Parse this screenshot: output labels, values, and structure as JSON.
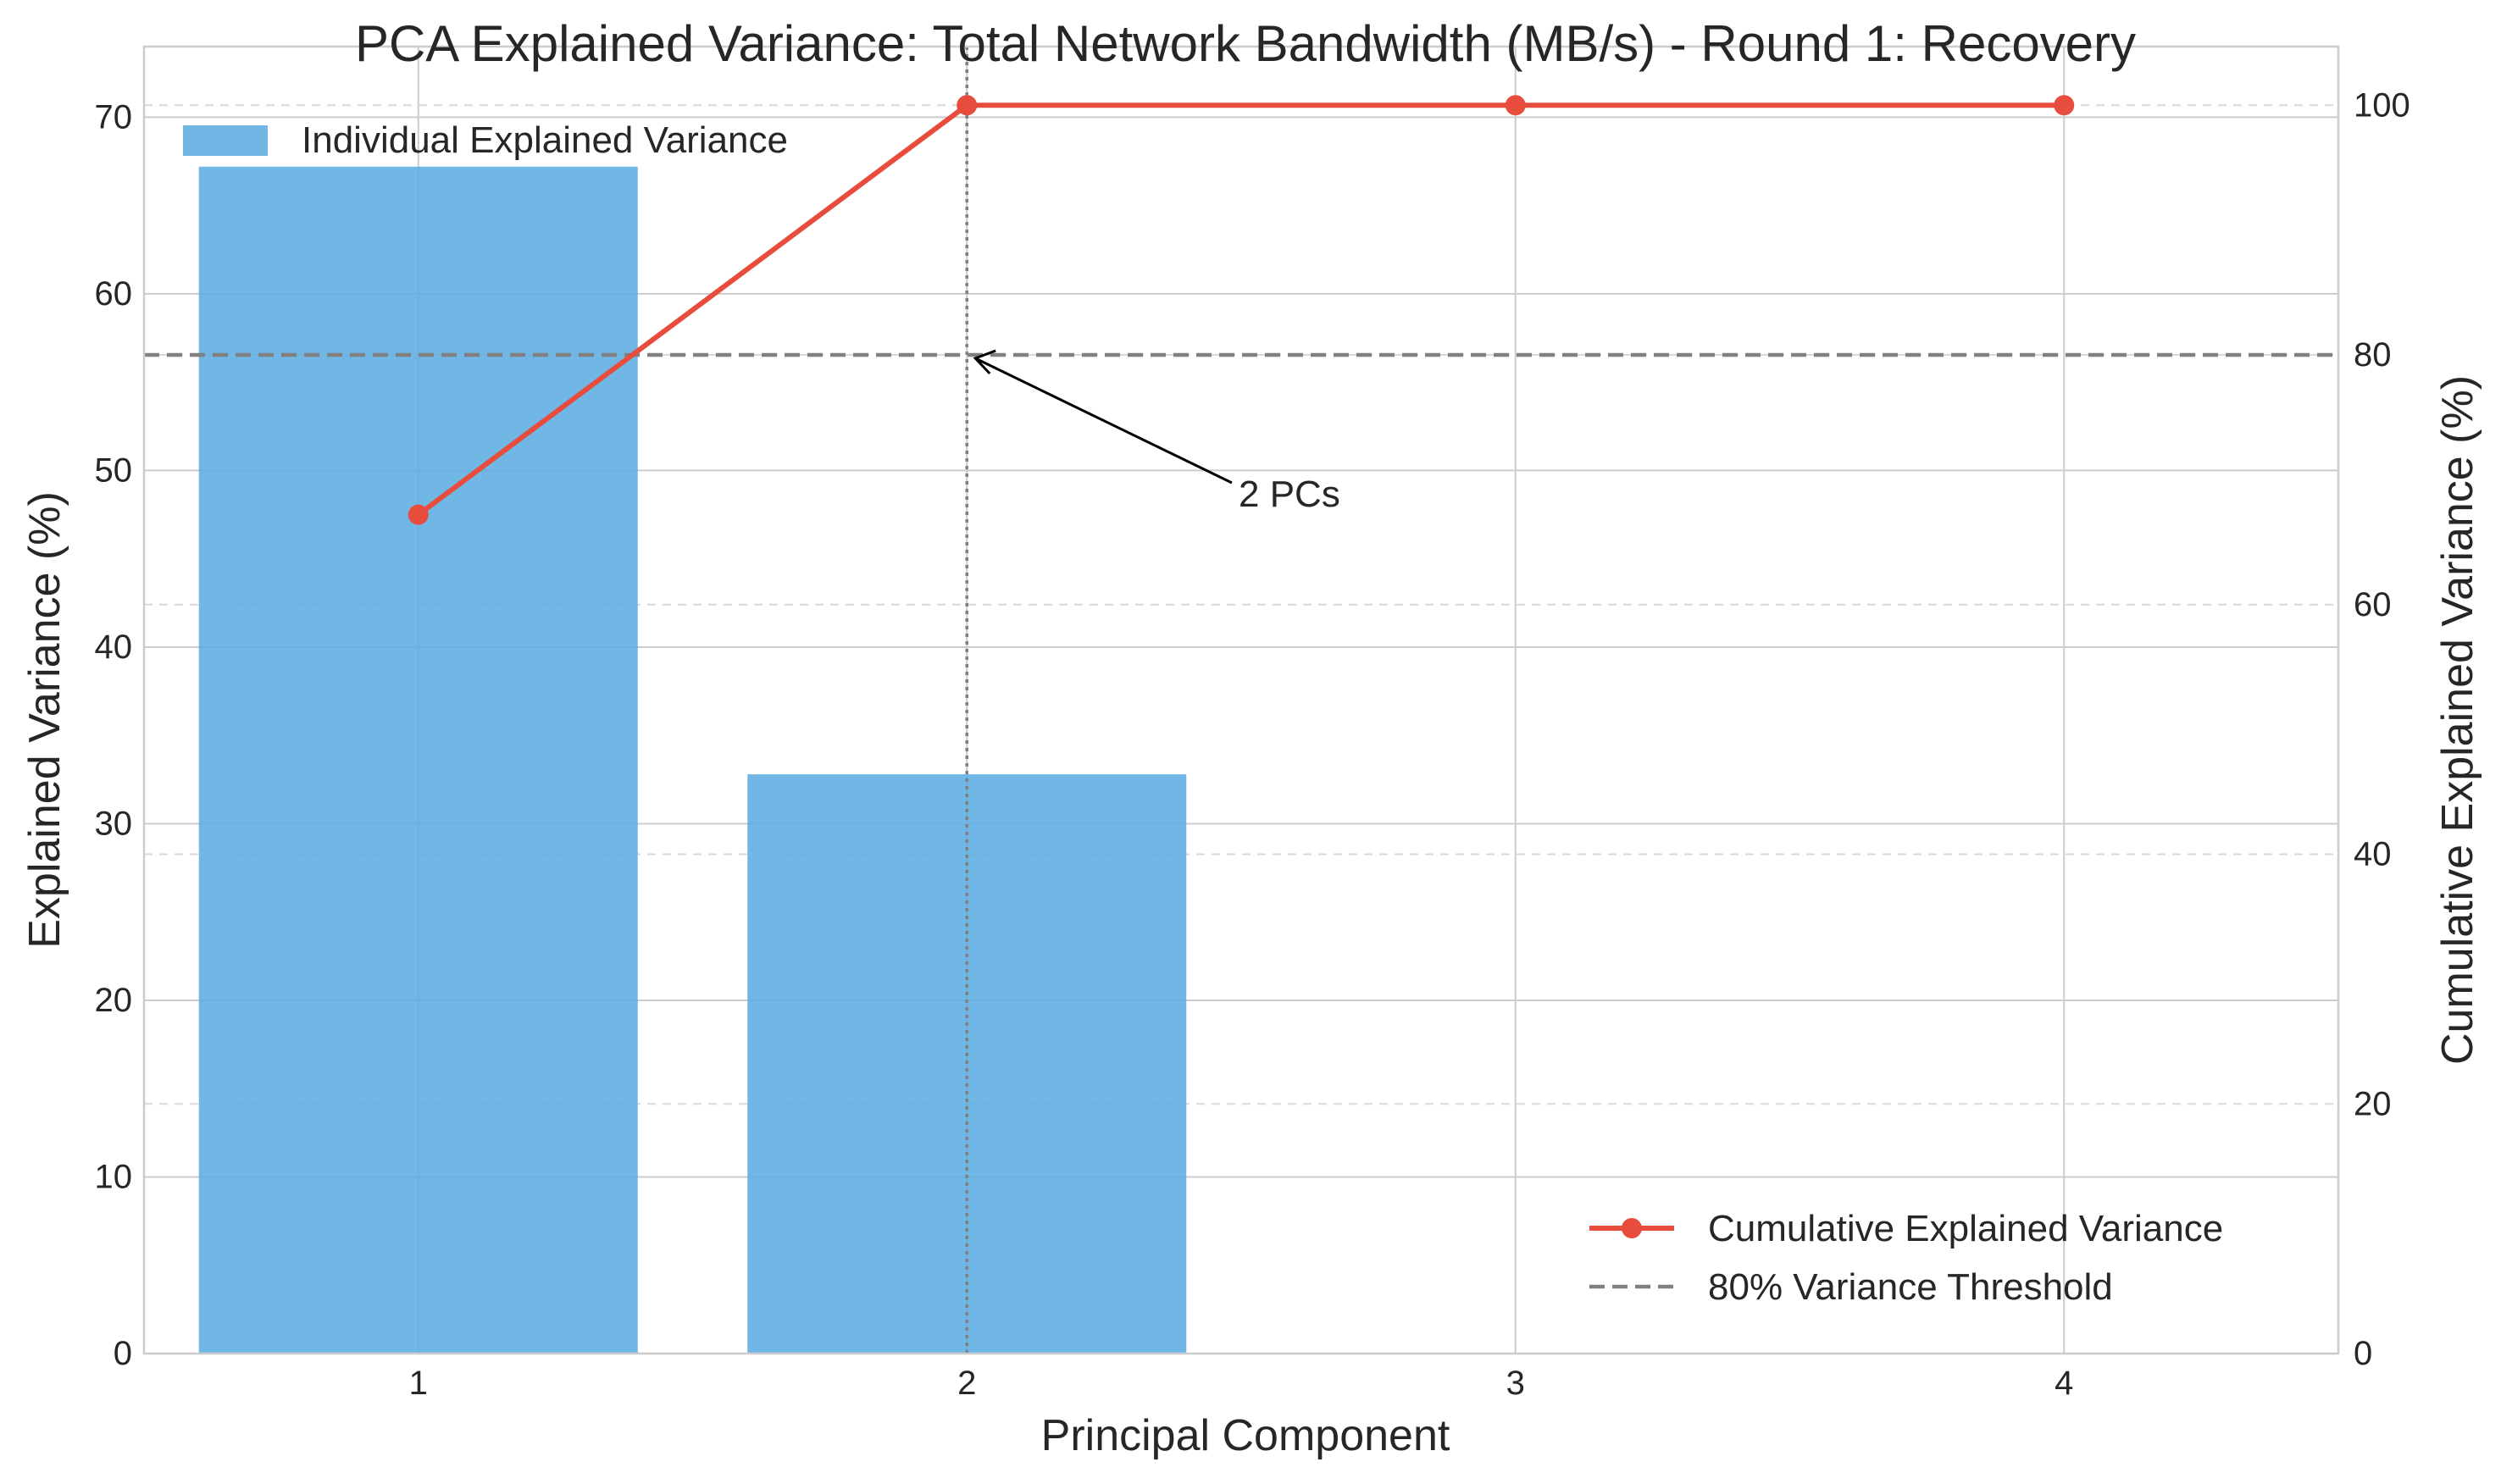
{
  "chart_data": {
    "type": "bar",
    "title": "PCA Explained Variance: Total Network Bandwidth (MB/s) - Round 1: Recovery",
    "xlabel": "Principal Component",
    "ylabel": "Explained Variance (%)",
    "y2label": "Cumulative Explained Variance (%)",
    "categories": [
      "1",
      "2",
      "3",
      "4"
    ],
    "x": [
      1,
      2,
      3,
      4
    ],
    "xlim": [
      0.5,
      4.5
    ],
    "ylim": [
      0,
      74
    ],
    "y2lim": [
      0,
      104.7
    ],
    "yticks": [
      0,
      10,
      20,
      30,
      40,
      50,
      60,
      70
    ],
    "y2ticks": [
      0,
      20,
      40,
      60,
      80,
      100
    ],
    "grid": true,
    "series": [
      {
        "name": "Individual Explained Variance",
        "type": "bar",
        "axis": "left",
        "values": [
          67.2,
          32.8,
          0.0,
          0.0
        ],
        "color": "#5dade2"
      },
      {
        "name": "Cumulative Explained Variance",
        "type": "line",
        "axis": "right",
        "values": [
          67.2,
          100.0,
          100.0,
          100.0
        ],
        "color": "#e74c3c"
      },
      {
        "name": "80% Variance Threshold",
        "type": "hline",
        "axis": "right",
        "value": 80,
        "color": "#808080"
      }
    ],
    "vline": {
      "x": 2,
      "color": "#808080"
    },
    "annotation": {
      "text": "2 PCs",
      "x_target": 2,
      "y_target": 80
    },
    "legend_upper": {
      "placement": "top-left",
      "label": "Individual Explained Variance"
    },
    "legend_lower": {
      "placement": "bottom-right",
      "labels": [
        "Cumulative Explained Variance",
        "80% Variance Threshold"
      ]
    }
  }
}
